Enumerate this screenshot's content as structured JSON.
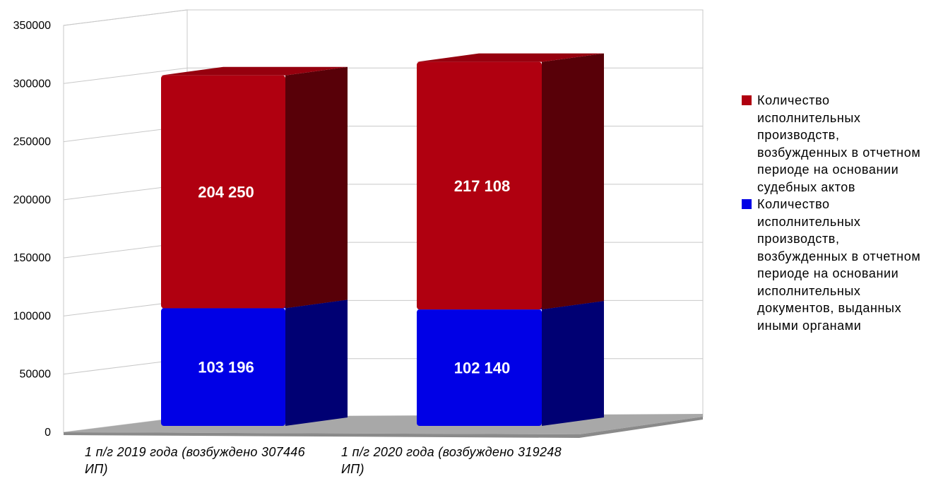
{
  "chart_data": {
    "type": "bar",
    "stacked": true,
    "three_d": true,
    "categories": [
      "1 п/г 2019 года (возбуждено 307446 ИП)",
      "1 п/г 2020 года (возбуждено 319248 ИП)"
    ],
    "series": [
      {
        "name": "Количество исполнительных производств, возбужденных в отчетном периоде на основании исполнительных документов, выданных иными органами",
        "values": [
          103196,
          102140
        ],
        "labels": [
          "103 196",
          "102 140"
        ],
        "color": "#0000e6"
      },
      {
        "name": "Количество исполнительных производств, возбужденных в отчетном периоде на основании судебных актов",
        "values": [
          204250,
          217108
        ],
        "labels": [
          "204 250",
          "217 108"
        ],
        "color": "#b00010"
      }
    ],
    "ylim": [
      0,
      350000
    ],
    "yticks": [
      "0",
      "50000",
      "100000",
      "150000",
      "200000",
      "250000",
      "300000",
      "350000"
    ],
    "grid": true,
    "legend_position": "right"
  },
  "legend": [
    {
      "label": "Количество исполнительных производств, возбужденных в отчетном периоде на основании судебных актов",
      "color": "#b00010"
    },
    {
      "label": "Количество исполнительных производств, возбужденных в отчетном периоде на основании исполнительных документов, выданных иными органами",
      "color": "#0000e6"
    }
  ]
}
